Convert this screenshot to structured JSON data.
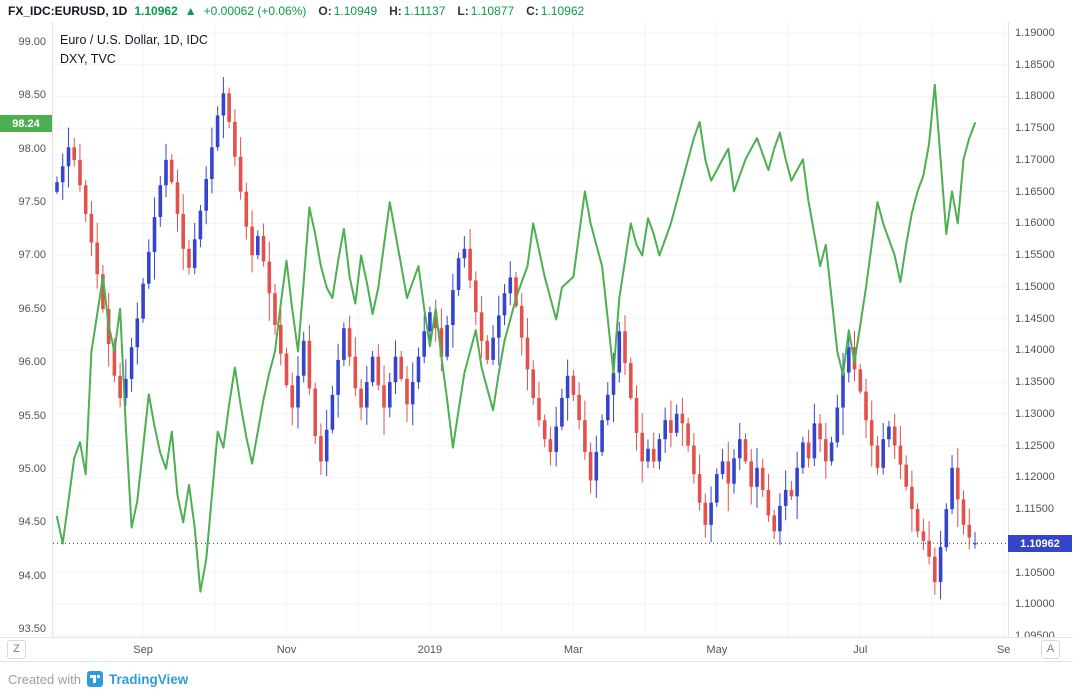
{
  "header": {
    "symbol": "FX_IDC:EURUSD, 1D",
    "last": "1.10962",
    "direction_icon": "▲",
    "change": "+0.00062 (+0.06%)",
    "ohlc": [
      {
        "k": "O:",
        "v": "1.10949"
      },
      {
        "k": "H:",
        "v": "1.11137"
      },
      {
        "k": "L:",
        "v": "1.10877"
      },
      {
        "k": "C:",
        "v": "1.10962"
      }
    ]
  },
  "legend": {
    "line1": "Euro / U.S. Dollar, 1D, IDC",
    "line2": "DXY, TVC"
  },
  "controls": {
    "left_btn": "Z",
    "right_btn": "A"
  },
  "footer": {
    "created_with": "Created with",
    "brand": "TradingView"
  },
  "colors": {
    "up": "#3445cc",
    "down": "#e2514c",
    "dxy_line": "#4caf50",
    "value_green": "#089b4a",
    "badge_left_bg": "#4caf50",
    "badge_right_bg": "#3445cc",
    "price_line": "#2a2e39"
  },
  "chart_data": {
    "type": "candlestick+line",
    "title": "Euro / U.S. Dollar, 1D, IDC",
    "overlay": "DXY, TVC",
    "legend_position": "top-left",
    "grid": "on",
    "x_ticks": [
      {
        "label": "Sep",
        "i": 15
      },
      {
        "label": "Nov",
        "i": 40
      },
      {
        "label": "2019",
        "i": 65
      },
      {
        "label": "Mar",
        "i": 90
      },
      {
        "label": "May",
        "i": 115
      },
      {
        "label": "Jul",
        "i": 140
      },
      {
        "label": "Se",
        "i": 165
      }
    ],
    "grid_v_indexes": [
      15,
      27.5,
      40,
      52.5,
      65,
      77.5,
      90,
      102.5,
      115,
      127.5,
      140,
      152.5,
      165
    ],
    "left_axis": {
      "min": 93.5,
      "max": 99.0,
      "step": 0.5,
      "ticks": [
        "99.00",
        "98.50",
        "98.00",
        "97.50",
        "97.00",
        "96.50",
        "96.00",
        "95.50",
        "95.00",
        "94.50",
        "94.00",
        "93.50"
      ],
      "last_label": "98.24",
      "last_value": 98.24
    },
    "right_axis": {
      "min": 1.095,
      "max": 1.19,
      "step": 0.005,
      "ticks": [
        "1.19000",
        "1.18500",
        "1.18000",
        "1.17500",
        "1.17000",
        "1.16500",
        "1.16000",
        "1.15500",
        "1.15000",
        "1.14500",
        "1.14000",
        "1.13500",
        "1.13000",
        "1.12500",
        "1.12000",
        "1.11500",
        "1.11000",
        "1.10500",
        "1.10000",
        "1.09500"
      ],
      "last_label": "1.10962",
      "last_value": 1.10962
    },
    "series": [
      {
        "name": "EURUSD",
        "type": "candlestick",
        "axis": "right",
        "closes": [
          1.1665,
          1.169,
          1.172,
          1.17,
          1.166,
          1.1615,
          1.157,
          1.152,
          1.1465,
          1.141,
          1.136,
          1.1325,
          1.1355,
          1.1405,
          1.145,
          1.1505,
          1.1555,
          1.161,
          1.166,
          1.17,
          1.1665,
          1.1615,
          1.156,
          1.153,
          1.1575,
          1.162,
          1.167,
          1.172,
          1.177,
          1.1805,
          1.176,
          1.1705,
          1.165,
          1.1595,
          1.155,
          1.158,
          1.154,
          1.149,
          1.144,
          1.1395,
          1.1345,
          1.131,
          1.136,
          1.1415,
          1.134,
          1.1265,
          1.1225,
          1.1275,
          1.133,
          1.1385,
          1.1435,
          1.139,
          1.134,
          1.131,
          1.135,
          1.139,
          1.1345,
          1.131,
          1.135,
          1.139,
          1.1355,
          1.1315,
          1.135,
          1.139,
          1.143,
          1.146,
          1.1435,
          1.139,
          1.144,
          1.1495,
          1.1545,
          1.156,
          1.151,
          1.146,
          1.1415,
          1.1385,
          1.142,
          1.1455,
          1.149,
          1.1515,
          1.147,
          1.142,
          1.137,
          1.1325,
          1.129,
          1.126,
          1.124,
          1.128,
          1.1325,
          1.136,
          1.133,
          1.129,
          1.124,
          1.1195,
          1.124,
          1.129,
          1.133,
          1.1365,
          1.143,
          1.138,
          1.1325,
          1.127,
          1.1225,
          1.1245,
          1.1225,
          1.126,
          1.129,
          1.127,
          1.13,
          1.1285,
          1.125,
          1.1205,
          1.116,
          1.1125,
          1.116,
          1.1205,
          1.1225,
          1.119,
          1.123,
          1.126,
          1.1225,
          1.1185,
          1.1215,
          1.118,
          1.114,
          1.1115,
          1.1155,
          1.118,
          1.117,
          1.1215,
          1.1255,
          1.123,
          1.1285,
          1.126,
          1.1225,
          1.1255,
          1.131,
          1.1365,
          1.1405,
          1.137,
          1.1335,
          1.129,
          1.125,
          1.1215,
          1.126,
          1.128,
          1.125,
          1.122,
          1.1185,
          1.115,
          1.1115,
          1.11,
          1.1075,
          1.1035,
          1.109,
          1.115,
          1.1215,
          1.1165,
          1.1125,
          1.1105,
          1.10962
        ],
        "last_candle": {
          "o": 1.10949,
          "h": 1.11137,
          "l": 1.10877,
          "c": 1.10962
        }
      },
      {
        "name": "DXY",
        "type": "line",
        "axis": "left",
        "values": [
          94.55,
          94.3,
          94.7,
          95.1,
          95.25,
          94.95,
          96.1,
          96.45,
          96.8,
          96.35,
          96.1,
          96.5,
          95.4,
          94.45,
          94.7,
          95.2,
          95.7,
          95.4,
          95.15,
          95.0,
          95.35,
          94.75,
          94.5,
          94.85,
          94.45,
          93.85,
          94.15,
          94.75,
          95.35,
          95.2,
          95.6,
          95.95,
          95.6,
          95.3,
          95.05,
          95.35,
          95.65,
          95.9,
          96.1,
          96.55,
          96.95,
          96.5,
          96.1,
          96.75,
          97.45,
          97.2,
          96.9,
          96.7,
          96.6,
          96.95,
          97.25,
          96.8,
          96.55,
          97.0,
          96.75,
          96.45,
          96.7,
          97.1,
          97.5,
          97.2,
          96.9,
          96.6,
          96.75,
          96.9,
          96.5,
          96.15,
          96.5,
          96.05,
          95.65,
          95.2,
          95.55,
          95.9,
          96.1,
          96.3,
          95.95,
          95.75,
          95.55,
          95.9,
          96.2,
          96.4,
          96.6,
          96.75,
          96.9,
          97.3,
          97.05,
          96.8,
          96.6,
          96.4,
          96.7,
          96.75,
          96.8,
          97.2,
          97.6,
          97.3,
          97.1,
          96.9,
          96.4,
          95.9,
          96.6,
          96.95,
          97.3,
          97.1,
          97.0,
          97.35,
          97.2,
          97.0,
          97.15,
          97.3,
          97.5,
          97.7,
          97.9,
          98.1,
          98.25,
          97.9,
          97.7,
          97.8,
          97.9,
          98.0,
          97.6,
          97.75,
          97.9,
          98.0,
          98.1,
          97.95,
          97.8,
          98.0,
          98.15,
          97.9,
          97.7,
          97.8,
          97.9,
          97.5,
          97.2,
          96.9,
          97.1,
          96.6,
          96.1,
          95.88,
          96.3,
          96.0,
          96.35,
          96.7,
          97.1,
          97.5,
          97.3,
          97.15,
          97.0,
          96.75,
          97.1,
          97.4,
          97.6,
          97.75,
          98.05,
          98.6,
          97.9,
          97.2,
          97.6,
          97.3,
          97.9,
          98.1,
          98.24
        ]
      }
    ]
  }
}
